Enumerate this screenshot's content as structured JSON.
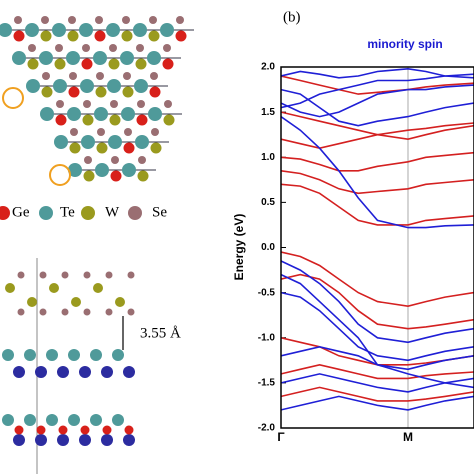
{
  "chart_data": {
    "type": "line",
    "panel_label": "(b)",
    "annotation": "minority spin",
    "annotation_color": "#1a1ad0",
    "y_label": "Energy (eV)",
    "x": [
      0,
      0.1,
      0.2,
      0.3,
      0.4,
      0.5,
      0.658,
      0.75,
      0.85,
      1.0
    ],
    "xlim": [
      0,
      1
    ],
    "xticks": [
      {
        "value": 0,
        "label": "Γ"
      },
      {
        "value": 0.658,
        "label": "M"
      }
    ],
    "ylim": [
      -2,
      2
    ],
    "yticks": [
      {
        "value": 2,
        "label": "2.0"
      },
      1.5,
      {
        "value": 1,
        "label": "1.0"
      },
      0.5,
      {
        "value": 0,
        "label": "0.0"
      },
      -0.5,
      {
        "value": -1,
        "label": "-1.0"
      },
      -1.5,
      {
        "value": -2,
        "label": "-2.0"
      }
    ],
    "series": [
      {
        "color": "#d42020",
        "values": [
          0.85,
          0.82,
          0.75,
          0.65,
          0.6,
          0.62,
          0.65,
          0.7,
          0.72,
          0.75
        ]
      },
      {
        "color": "#d42020",
        "values": [
          0.7,
          0.68,
          0.6,
          0.45,
          0.3,
          0.25,
          0.25,
          0.3,
          0.32,
          0.35
        ]
      },
      {
        "color": "#d42020",
        "values": [
          1.0,
          0.98,
          0.92,
          0.85,
          0.85,
          0.9,
          0.95,
          1.0,
          1.02,
          1.05
        ]
      },
      {
        "color": "#d42020",
        "values": [
          1.2,
          1.15,
          1.1,
          1.15,
          1.2,
          1.25,
          1.3,
          1.32,
          1.35,
          1.38
        ]
      },
      {
        "color": "#d42020",
        "values": [
          1.5,
          1.45,
          1.4,
          1.35,
          1.3,
          1.25,
          1.2,
          1.25,
          1.3,
          1.35
        ]
      },
      {
        "color": "#d42020",
        "values": [
          1.9,
          1.85,
          1.8,
          1.75,
          1.7,
          1.72,
          1.75,
          1.78,
          1.8,
          1.82
        ]
      },
      {
        "color": "#d42020",
        "values": [
          -0.05,
          -0.1,
          -0.2,
          -0.35,
          -0.5,
          -0.6,
          -0.65,
          -0.6,
          -0.55,
          -0.5
        ]
      },
      {
        "color": "#d42020",
        "values": [
          -0.35,
          -0.3,
          -0.35,
          -0.5,
          -0.7,
          -0.85,
          -0.9,
          -0.88,
          -0.85,
          -0.8
        ]
      },
      {
        "color": "#d42020",
        "values": [
          -1.0,
          -1.05,
          -1.1,
          -1.2,
          -1.25,
          -1.3,
          -1.3,
          -1.28,
          -1.25,
          -1.2
        ]
      },
      {
        "color": "#d42020",
        "values": [
          -1.4,
          -1.35,
          -1.3,
          -1.35,
          -1.4,
          -1.45,
          -1.45,
          -1.42,
          -1.4,
          -1.38
        ]
      },
      {
        "color": "#d42020",
        "values": [
          -1.65,
          -1.6,
          -1.55,
          -1.6,
          -1.65,
          -1.7,
          -1.7,
          -1.68,
          -1.65,
          -1.6
        ]
      },
      {
        "color": "#1f1fd6",
        "values": [
          1.45,
          1.3,
          1.1,
          0.85,
          0.55,
          0.3,
          0.22,
          0.22,
          0.24,
          0.25
        ]
      },
      {
        "color": "#1f1fd6",
        "values": [
          1.55,
          1.6,
          1.7,
          1.75,
          1.8,
          1.85,
          1.85,
          1.87,
          1.9,
          1.92
        ]
      },
      {
        "color": "#1f1fd6",
        "values": [
          1.6,
          1.5,
          1.45,
          1.5,
          1.6,
          1.7,
          1.75,
          1.75,
          1.78,
          1.8
        ]
      },
      {
        "color": "#1f1fd6",
        "values": [
          1.9,
          1.95,
          1.92,
          1.88,
          1.9,
          1.95,
          1.98,
          1.95,
          1.9,
          1.88
        ]
      },
      {
        "color": "#1f1fd6",
        "values": [
          1.75,
          1.7,
          1.55,
          1.4,
          1.35,
          1.4,
          1.45,
          1.5,
          1.55,
          1.6
        ]
      },
      {
        "color": "#1f1fd6",
        "values": [
          -0.15,
          -0.25,
          -0.4,
          -0.6,
          -0.85,
          -1.0,
          -1.05,
          -1.0,
          -0.95,
          -0.9
        ]
      },
      {
        "color": "#1f1fd6",
        "values": [
          -0.3,
          -0.4,
          -0.6,
          -0.8,
          -1.0,
          -1.3,
          -1.4,
          -1.45,
          -1.5,
          -1.55
        ]
      },
      {
        "color": "#1f1fd6",
        "values": [
          -0.5,
          -0.55,
          -0.7,
          -0.9,
          -1.1,
          -1.2,
          -1.25,
          -1.2,
          -1.15,
          -1.1
        ]
      },
      {
        "color": "#1f1fd6",
        "values": [
          -1.2,
          -1.15,
          -1.1,
          -1.15,
          -1.2,
          -1.3,
          -1.35,
          -1.3,
          -1.25,
          -1.2
        ]
      },
      {
        "color": "#1f1fd6",
        "values": [
          -1.5,
          -1.45,
          -1.4,
          -1.45,
          -1.5,
          -1.55,
          -1.6,
          -1.55,
          -1.5,
          -1.45
        ]
      },
      {
        "color": "#1f1fd6",
        "values": [
          -1.8,
          -1.75,
          -1.7,
          -1.65,
          -1.7,
          -1.75,
          -1.8,
          -1.75,
          -1.7,
          -1.65
        ]
      }
    ]
  },
  "structure": {
    "legend": [
      "Ge",
      "Te",
      "W",
      "Se"
    ],
    "distance_label": "3.55 Å"
  }
}
